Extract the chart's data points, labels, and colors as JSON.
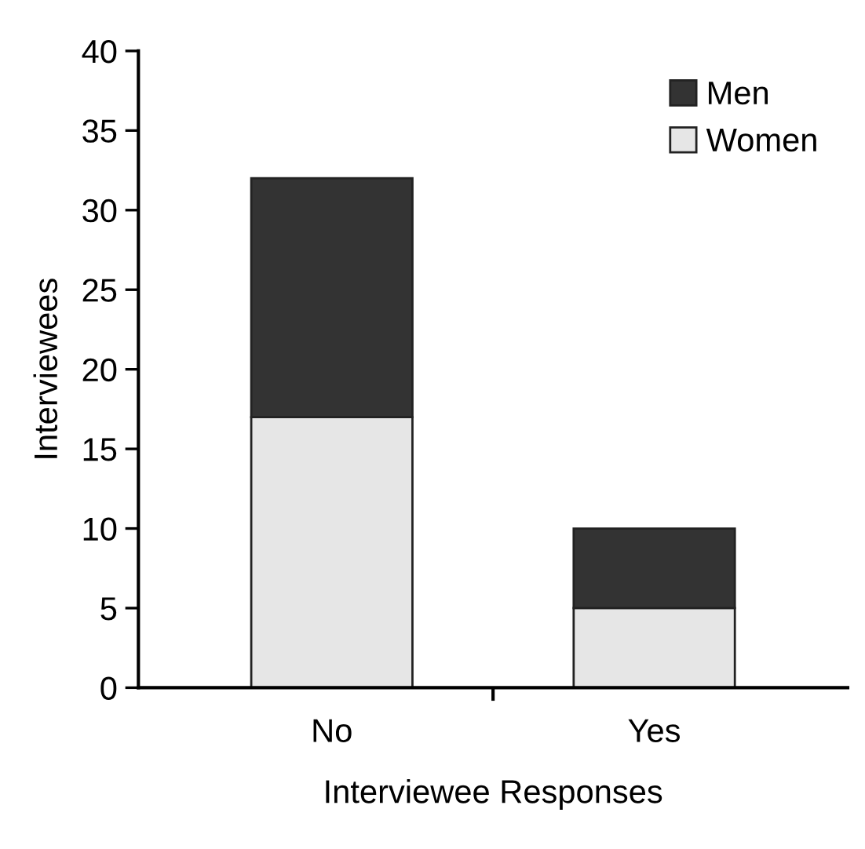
{
  "chart_data": {
    "type": "bar",
    "stacked": true,
    "xlabel": "Interviewee Responses",
    "ylabel": "Interviewees",
    "categories": [
      "No",
      "Yes"
    ],
    "series": [
      {
        "name": "Women",
        "color": "#e6e6e6",
        "values": [
          17,
          5
        ]
      },
      {
        "name": "Men",
        "color": "#333333",
        "values": [
          15,
          5
        ]
      }
    ],
    "ylim": [
      0,
      40
    ],
    "yticks": [
      0,
      5,
      10,
      15,
      20,
      25,
      30,
      35,
      40
    ],
    "grid": false,
    "legend": "top right"
  }
}
